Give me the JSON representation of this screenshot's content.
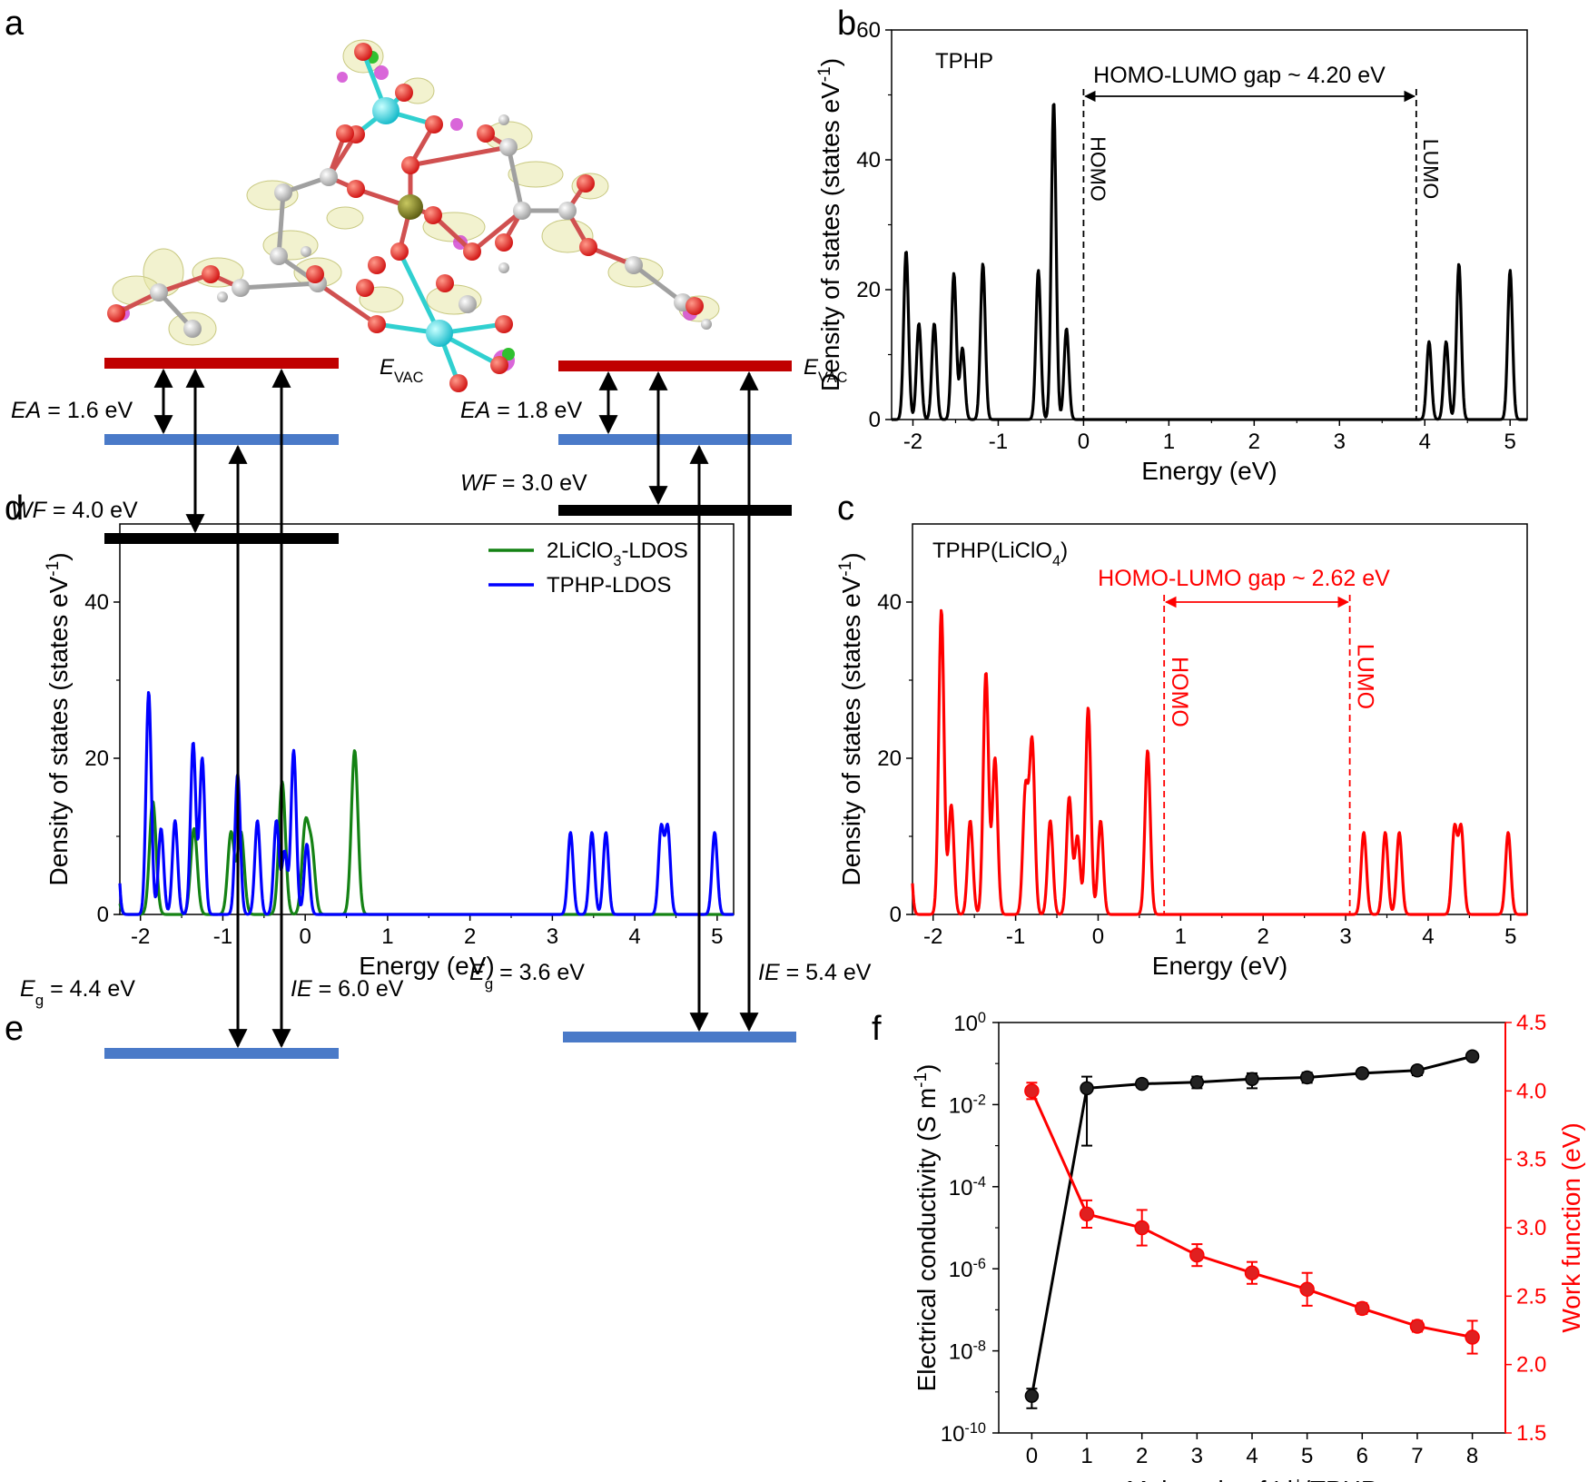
{
  "panels": {
    "a": {
      "letter": "a",
      "description_label": ""
    },
    "b": {
      "letter": "b"
    },
    "c": {
      "letter": "c"
    },
    "d": {
      "letter": "d"
    },
    "e": {
      "letter": "e"
    },
    "f": {
      "letter": "f"
    }
  },
  "colors": {
    "black": "#000000",
    "red": "#ff0000",
    "green": "#148214",
    "blue": "#0000ff",
    "vac": "#c00000",
    "band_blue": "#4a7ac8"
  },
  "chart_data": [
    {
      "id": "b",
      "type": "line",
      "title": "TPHP",
      "xlabel": "Energy (eV)",
      "ylabel": "Density of states (states eV-1)",
      "xlim": [
        -2.25,
        5.2
      ],
      "ylim": [
        0,
        60
      ],
      "xticks": [
        -2,
        -1,
        0,
        1,
        2,
        3,
        4,
        5
      ],
      "yticks": [
        0,
        20,
        40,
        60
      ],
      "gap_text": "HOMO-LUMO gap ~ 4.20 eV",
      "homo_label": "HOMO",
      "lumo_label": "LUMO",
      "homo_x": 0.0,
      "lumo_x": 3.9,
      "series": [
        {
          "name": "TPHP",
          "color": "#000000",
          "width": 0.028,
          "peaks": [
            [
              -2.08,
              26
            ],
            [
              -1.93,
              14.8
            ],
            [
              -1.75,
              14.8
            ],
            [
              -1.52,
              22.5
            ],
            [
              -1.42,
              11
            ],
            [
              -1.18,
              24
            ],
            [
              -0.53,
              23
            ],
            [
              -0.35,
              49
            ],
            [
              -0.2,
              14
            ],
            [
              4.05,
              12
            ],
            [
              4.25,
              12
            ],
            [
              4.4,
              24
            ],
            [
              5.0,
              23
            ]
          ]
        }
      ]
    },
    {
      "id": "c",
      "type": "line",
      "title": "TPHP(LiClO4)",
      "xlabel": "Energy (eV)",
      "ylabel": "Density of states (states eV-1)",
      "xlim": [
        -2.25,
        5.2
      ],
      "ylim": [
        0,
        50
      ],
      "xticks": [
        -2,
        -1,
        0,
        1,
        2,
        3,
        4,
        5
      ],
      "yticks": [
        0,
        20,
        40
      ],
      "gap_text": "HOMO-LUMO gap ~ 2.62 eV",
      "homo_label": "HOMO",
      "lumo_label": "LUMO",
      "homo_x": 0.8,
      "lumo_x": 3.05,
      "series": [
        {
          "name": "TPHP(LiClO4)",
          "color": "#ff0000",
          "width": 0.032,
          "peaks": [
            [
              -2.3,
              13.5
            ],
            [
              -1.9,
              39
            ],
            [
              -1.78,
              14
            ],
            [
              -1.55,
              12
            ],
            [
              -1.36,
              31
            ],
            [
              -1.25,
              20
            ],
            [
              -0.88,
              16
            ],
            [
              -0.8,
              22
            ],
            [
              -0.58,
              12
            ],
            [
              -0.35,
              15
            ],
            [
              -0.25,
              10
            ],
            [
              -0.12,
              26.5
            ],
            [
              0.03,
              12
            ],
            [
              0.6,
              21
            ],
            [
              3.22,
              10.5
            ],
            [
              3.48,
              10.5
            ],
            [
              3.65,
              10.5
            ],
            [
              4.32,
              11
            ],
            [
              4.4,
              11
            ],
            [
              4.97,
              10.5
            ],
            [
              5.3,
              8
            ]
          ]
        }
      ]
    },
    {
      "id": "d",
      "type": "line",
      "title": "",
      "xlabel": "Energy (eV)",
      "ylabel": "Density of states (states eV-1)",
      "xlim": [
        -2.25,
        5.2
      ],
      "ylim": [
        0,
        50
      ],
      "xticks": [
        -2,
        -1,
        0,
        1,
        2,
        3,
        4,
        5
      ],
      "yticks": [
        0,
        20,
        40
      ],
      "legend": [
        "2LiClO3-LDOS",
        "TPHP-LDOS"
      ],
      "series": [
        {
          "name": "2LiClO3-LDOS",
          "color": "#148214",
          "width": 0.04,
          "peaks": [
            [
              -2.3,
              3
            ],
            [
              -1.85,
              14.5
            ],
            [
              -1.35,
              11
            ],
            [
              -0.9,
              10.5
            ],
            [
              -0.78,
              10.5
            ],
            [
              -0.28,
              17
            ],
            [
              0.0,
              11
            ],
            [
              0.08,
              8
            ],
            [
              0.6,
              21
            ]
          ]
        },
        {
          "name": "TPHP-LDOS",
          "color": "#0000ff",
          "width": 0.032,
          "peaks": [
            [
              -2.3,
              13.5
            ],
            [
              -1.9,
              28.5
            ],
            [
              -1.75,
              11
            ],
            [
              -1.58,
              12
            ],
            [
              -1.36,
              22
            ],
            [
              -1.25,
              20
            ],
            [
              -0.82,
              18
            ],
            [
              -0.58,
              12
            ],
            [
              -0.35,
              12
            ],
            [
              -0.25,
              8
            ],
            [
              -0.14,
              21
            ],
            [
              0.02,
              9
            ],
            [
              3.22,
              10.5
            ],
            [
              3.48,
              10.5
            ],
            [
              3.65,
              10.5
            ],
            [
              4.32,
              11
            ],
            [
              4.4,
              11
            ],
            [
              4.97,
              10.5
            ],
            [
              5.3,
              8
            ]
          ]
        }
      ]
    },
    {
      "id": "f",
      "type": "line",
      "xlabel": "Mole ratio of Li+/TPHP",
      "ylabel_left": "Electrical conductivity (S m-1)",
      "ylabel_right": "Work function (eV)",
      "x": [
        0,
        1,
        2,
        3,
        4,
        5,
        6,
        7,
        8
      ],
      "xlim": [
        -0.6,
        8.6
      ],
      "ylim_left_log10": [
        -10,
        0
      ],
      "ylim_right": [
        1.5,
        4.5
      ],
      "yticks_right": [
        1.5,
        2.0,
        2.5,
        3.0,
        3.5,
        4.0,
        4.5
      ],
      "series": [
        {
          "name": "Electrical conductivity",
          "axis": "left",
          "color": "#000000",
          "values": [
            8e-10,
            0.025,
            0.032,
            0.035,
            0.042,
            0.046,
            0.058,
            0.068,
            0.15
          ],
          "err_low": [
            4e-10,
            0.001,
            0.026,
            0.025,
            0.025,
            0.034,
            0.051,
            0.052,
            0.15
          ],
          "err_high": [
            1.2e-09,
            0.048,
            0.04,
            0.048,
            0.058,
            0.06,
            0.066,
            0.085,
            0.15
          ]
        },
        {
          "name": "Work function",
          "axis": "right",
          "color": "#ff0000",
          "values": [
            4.0,
            3.1,
            3.0,
            2.8,
            2.67,
            2.55,
            2.41,
            2.28,
            2.2
          ],
          "errors": [
            0.06,
            0.1,
            0.13,
            0.08,
            0.08,
            0.12,
            0.04,
            0.04,
            0.12
          ]
        }
      ]
    }
  ],
  "energy_diagrams": [
    {
      "evac_label": "E",
      "evac_sub": "VAC",
      "ea_label": "EA",
      "ea_value": " = 1.6 eV",
      "wf_label": "WF",
      "wf_value": " = 4.0 eV",
      "eg_label": "E",
      "eg_sub": "g",
      "eg_value": " = 4.4 eV",
      "ie_label": "IE",
      "ie_value": " = 6.0 eV"
    },
    {
      "evac_label": "E",
      "evac_sub": "VAC",
      "ea_label": "EA",
      "ea_value": " = 1.8 eV",
      "wf_label": "WF",
      "wf_value": " = 3.0 eV",
      "eg_label": "E",
      "eg_sub": "g",
      "eg_value": " = 3.6 eV",
      "ie_label": "IE",
      "ie_value": " = 5.4 eV"
    }
  ]
}
